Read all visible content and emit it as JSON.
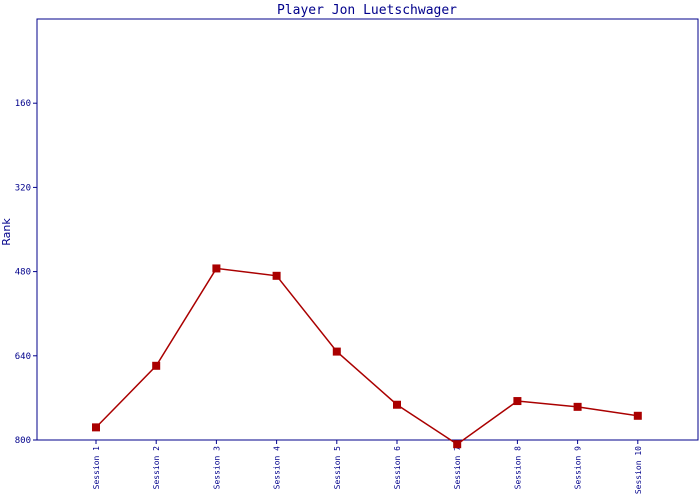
{
  "chart_data": {
    "type": "line",
    "title": "Player Jon Luetschwager",
    "xlabel": "",
    "ylabel": "Rank",
    "categories": [
      "Session 1",
      "Session 2",
      "Session 3",
      "Session 4",
      "Session 5",
      "Session 6",
      "Session 7",
      "Session 8",
      "Session 9",
      "Session 10"
    ],
    "yticks": [
      160,
      320,
      480,
      640,
      800
    ],
    "ylim": [
      0,
      800
    ],
    "y_inverted": true,
    "grid": false,
    "series": [
      {
        "name": "",
        "color": "#aa0000",
        "marker": "square",
        "values": [
          776,
          659,
          474,
          488,
          632,
          733,
          808,
          726,
          737,
          754
        ]
      }
    ]
  }
}
